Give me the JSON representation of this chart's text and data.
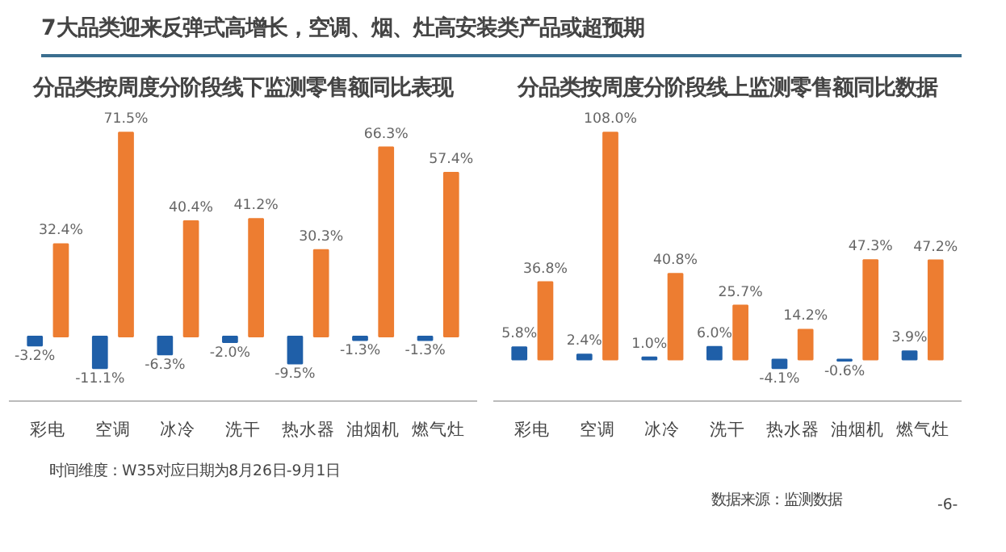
{
  "chart_data": [
    {
      "type": "bar",
      "title": "分品类按周度分阶段线下监测零售额同比表现",
      "categories": [
        "彩电",
        "空调",
        "冰冷",
        "洗干",
        "热水器",
        "油烟机",
        "燃气灶"
      ],
      "series": [
        {
          "color": "#1f5fa8",
          "values": [
            -3.2,
            -11.1,
            -6.3,
            -2.0,
            -9.5,
            -1.3,
            -1.3
          ],
          "value_labels": [
            "-3.2%",
            "-11.1%",
            "-6.3%",
            "-2.0%",
            "-9.5%",
            "-1.3%",
            "-1.3%"
          ]
        },
        {
          "color": "#ed7d31",
          "values": [
            32.4,
            71.5,
            40.4,
            41.2,
            30.3,
            66.3,
            57.4
          ],
          "value_labels": [
            "32.4%",
            "71.5%",
            "40.4%",
            "41.2%",
            "30.3%",
            "66.3%",
            "57.4%"
          ]
        }
      ],
      "annotations": [
        "7大品类迎来反弹式高增长，空调、烟、灶高安装类产品或超预期",
        "时间维度：W35对应日期为8月26日-9月1日"
      ]
    },
    {
      "type": "bar",
      "title": "分品类按周度分阶段线上监测零售额同比数据",
      "categories": [
        "彩电",
        "空调",
        "冰冷",
        "洗干",
        "热水器",
        "油烟机",
        "燃气灶"
      ],
      "series": [
        {
          "color": "#1f5fa8",
          "values": [
            5.8,
            2.4,
            1.0,
            6.0,
            -4.1,
            -0.6,
            3.9
          ],
          "value_labels": [
            "5.8%",
            "2.4%",
            "1.0%",
            "6.0%",
            "-4.1%",
            "-0.6%",
            "3.9%"
          ]
        },
        {
          "color": "#ed7d31",
          "values": [
            36.8,
            108.0,
            40.8,
            25.7,
            14.2,
            47.3,
            47.2
          ],
          "value_labels": [
            "36.8%",
            "108.0%",
            "40.8%",
            "25.7%",
            "14.2%",
            "47.3%",
            "47.2%"
          ]
        }
      ],
      "annotations": [
        "数据来源：监测数据",
        "-6-"
      ]
    }
  ]
}
